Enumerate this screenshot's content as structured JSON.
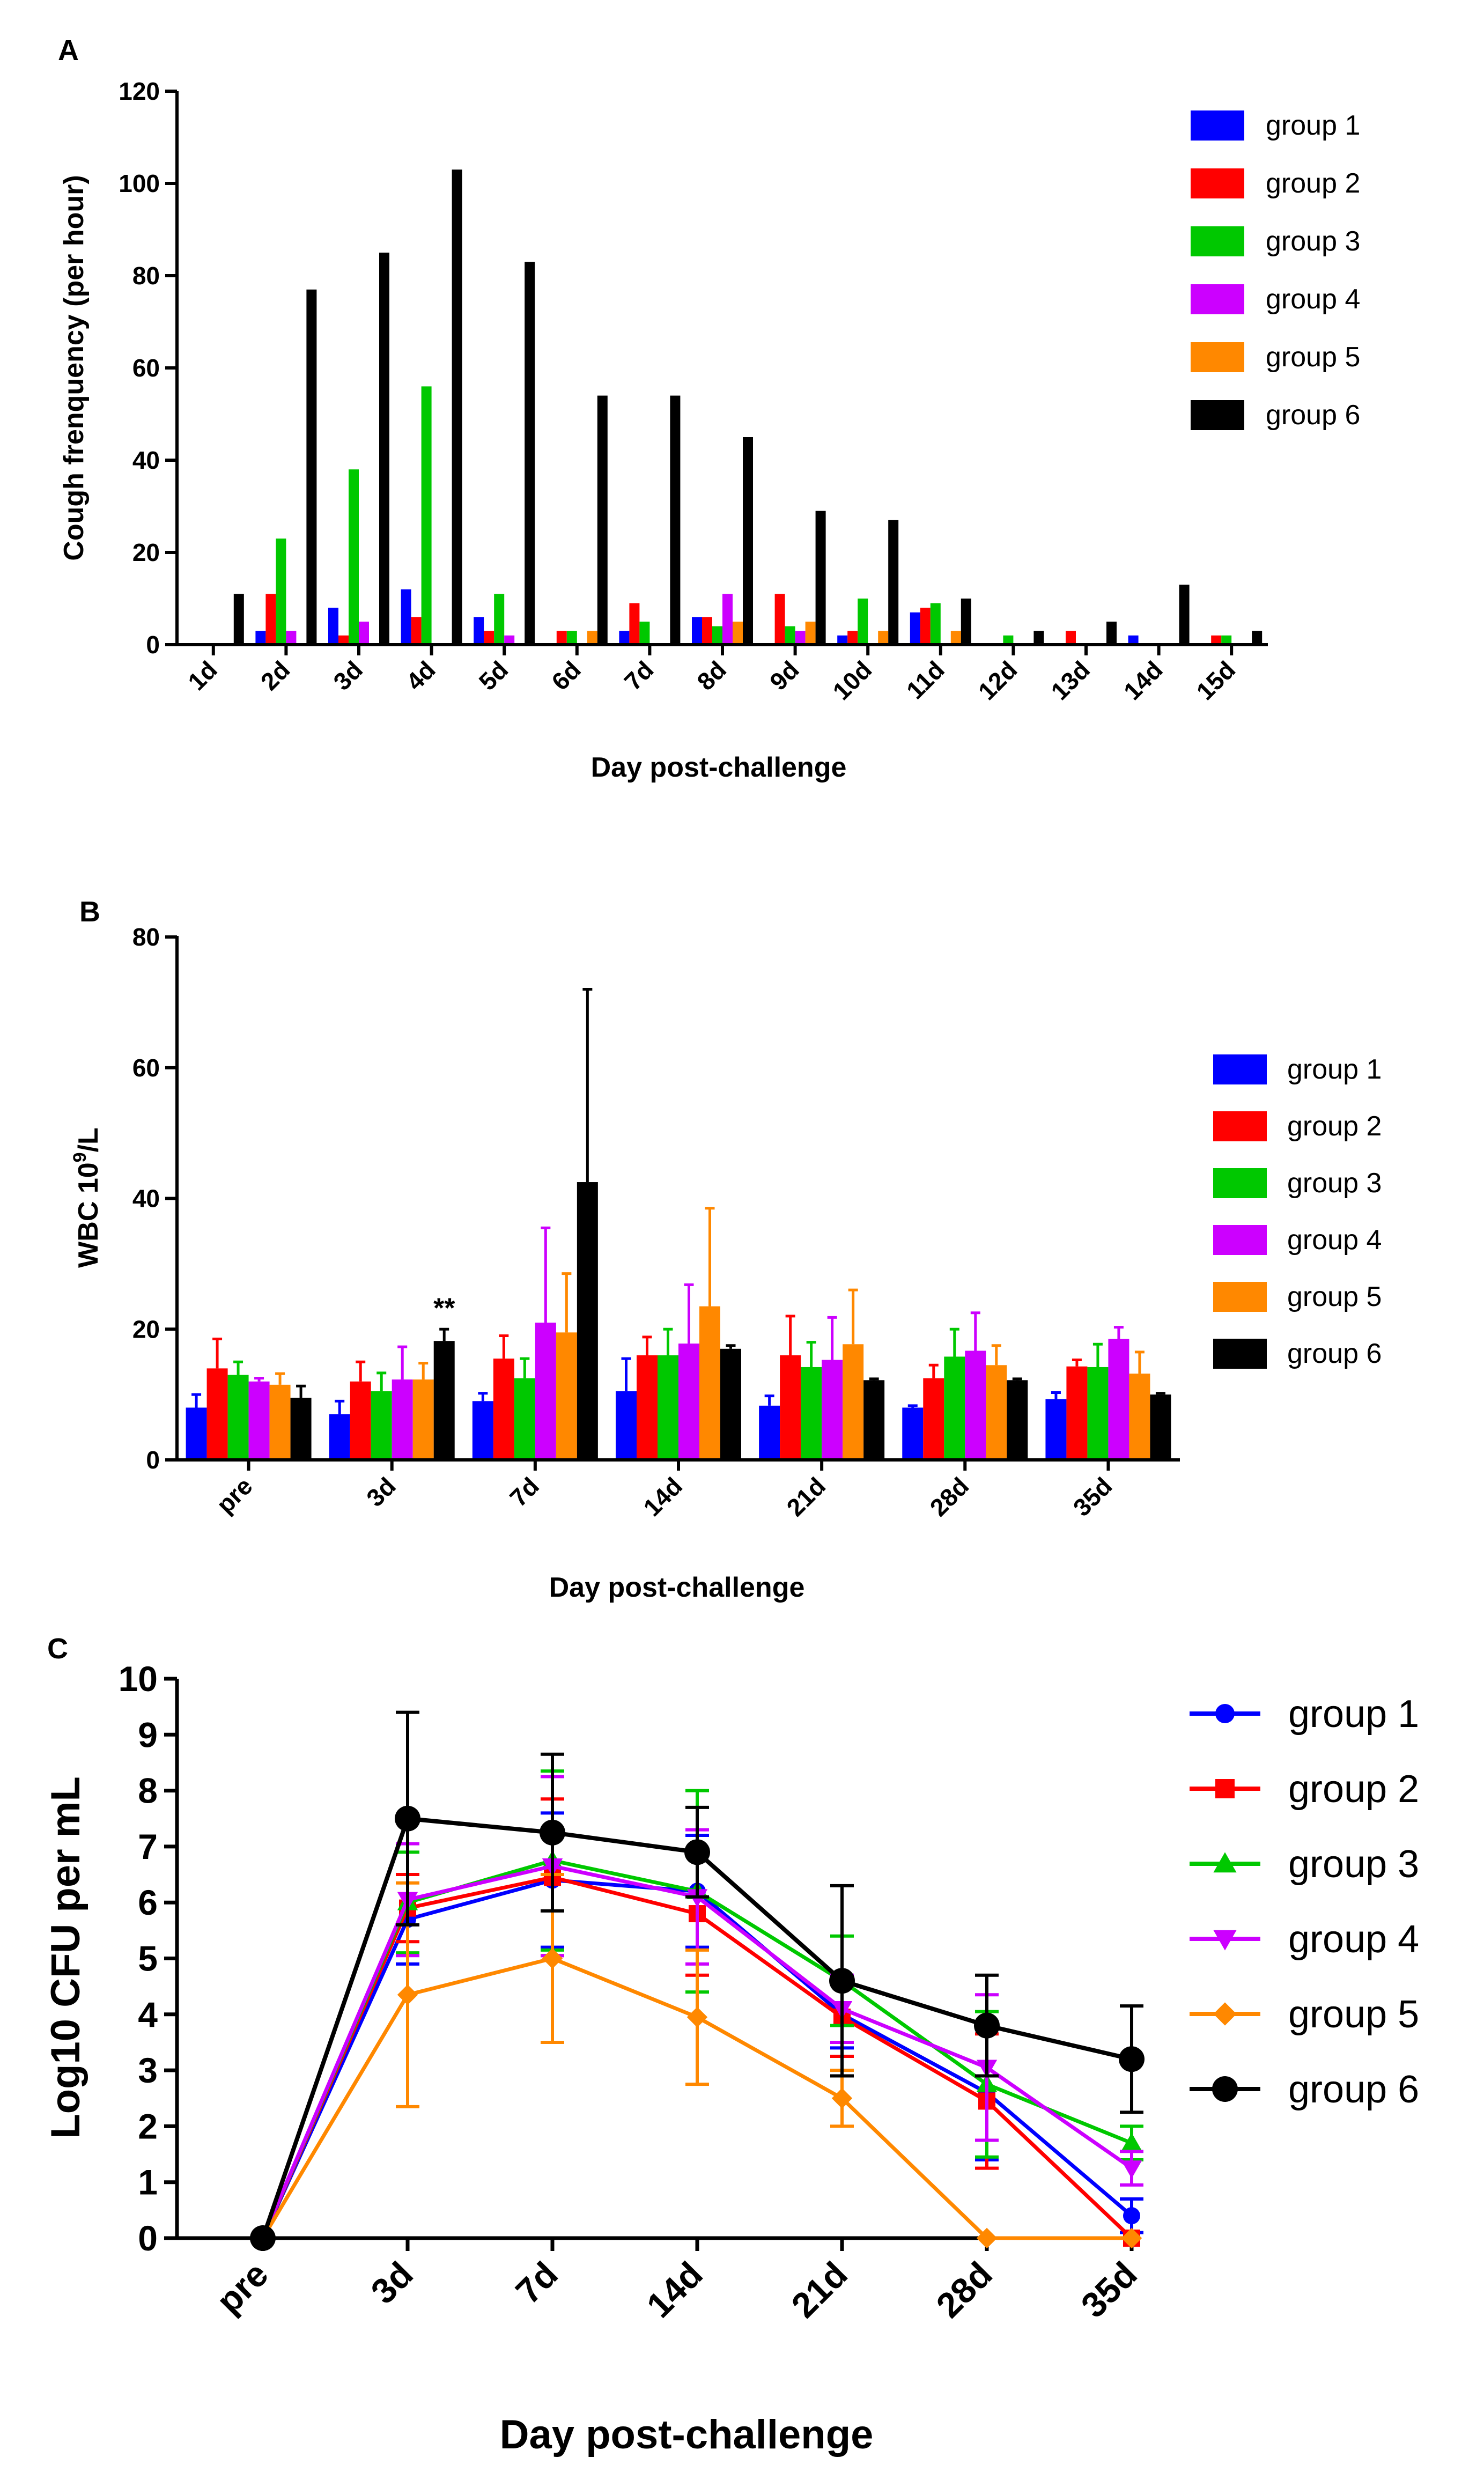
{
  "colors": {
    "group 1": "#0000ff",
    "group 2": "#ff0000",
    "group 3": "#00c800",
    "group 4": "#cc00ff",
    "group 5": "#ff8800",
    "group 6": "#000000"
  },
  "chart_data": [
    {
      "panel": "A",
      "type": "bar",
      "title": "",
      "xlabel": "Day post-challenge",
      "ylabel": "Cough frenquency (per hour)",
      "ylim": [
        0,
        120
      ],
      "yticks": [
        "0",
        "20",
        "40",
        "60",
        "80",
        "100",
        "120"
      ],
      "legend_position": "top-right",
      "categories": [
        "1d",
        "2d",
        "3d",
        "4d",
        "5d",
        "6d",
        "7d",
        "8d",
        "9d",
        "10d",
        "11d",
        "12d",
        "13d",
        "14d",
        "15d"
      ],
      "series": [
        {
          "name": "group 1",
          "values": [
            0,
            3,
            8,
            12,
            6,
            0,
            3,
            6,
            0,
            2,
            7,
            0,
            0,
            2,
            0
          ]
        },
        {
          "name": "group 2",
          "values": [
            0,
            11,
            2,
            6,
            3,
            3,
            9,
            6,
            11,
            3,
            8,
            0,
            3,
            0,
            2
          ]
        },
        {
          "name": "group 3",
          "values": [
            0,
            23,
            38,
            56,
            11,
            3,
            5,
            4,
            4,
            10,
            9,
            2,
            0,
            0,
            2
          ]
        },
        {
          "name": "group 4",
          "values": [
            0,
            3,
            5,
            0,
            2,
            0,
            0,
            11,
            3,
            0,
            0,
            0,
            0,
            0,
            0
          ]
        },
        {
          "name": "group 5",
          "values": [
            0,
            0,
            0,
            0,
            0,
            3,
            0,
            5,
            5,
            3,
            3,
            0,
            0,
            0,
            0
          ]
        },
        {
          "name": "group 6",
          "values": [
            11,
            77,
            85,
            103,
            83,
            54,
            54,
            45,
            29,
            27,
            10,
            3,
            5,
            13,
            3
          ]
        }
      ]
    },
    {
      "panel": "B",
      "type": "bar",
      "title": "",
      "xlabel": "Day post-challenge",
      "ylabel": "WBC 10",
      "ylabel_sup": "9",
      "ylabel_suffix": "/L",
      "ylim": [
        0,
        80
      ],
      "yticks": [
        "0",
        "20",
        "40",
        "60",
        "80"
      ],
      "legend_position": "right",
      "annotation": {
        "text": "**",
        "category": "3d",
        "series": "group 6"
      },
      "categories": [
        "pre",
        "3d",
        "7d",
        "14d",
        "21d",
        "28d",
        "35d"
      ],
      "series": [
        {
          "name": "group 1",
          "values": [
            8,
            7,
            9,
            10.5,
            8.3,
            8,
            9.3
          ],
          "errors": [
            2,
            2,
            1.2,
            5,
            1.5,
            0.3,
            1
          ]
        },
        {
          "name": "group 2",
          "values": [
            14,
            12,
            15.5,
            16,
            16,
            12.5,
            14.3
          ],
          "errors": [
            4.5,
            3,
            3.5,
            2.8,
            6,
            2,
            1
          ]
        },
        {
          "name": "group 3",
          "values": [
            13,
            10.5,
            12.5,
            16,
            14.2,
            15.8,
            14.2
          ],
          "errors": [
            2,
            2.8,
            3,
            4,
            3.8,
            4.2,
            3.5
          ]
        },
        {
          "name": "group 4",
          "values": [
            12,
            12.3,
            21,
            17.8,
            15.3,
            16.7,
            18.5
          ],
          "errors": [
            0.5,
            5,
            14.5,
            9,
            6.5,
            5.8,
            1.8
          ]
        },
        {
          "name": "group 5",
          "values": [
            11.5,
            12.3,
            19.5,
            23.5,
            17.7,
            14.5,
            13.2
          ],
          "errors": [
            1.7,
            2.5,
            9,
            15,
            8.3,
            3,
            3.3
          ]
        },
        {
          "name": "group 6",
          "values": [
            9.5,
            18.2,
            42.5,
            17,
            12.2,
            12.2,
            10
          ],
          "errors": [
            1.8,
            1.8,
            29.5,
            0.5,
            0.2,
            0.2,
            0.2
          ]
        }
      ]
    },
    {
      "panel": "C",
      "type": "line",
      "title": "",
      "xlabel": "Day post-challenge",
      "ylabel": "Log10 CFU per mL",
      "ylim": [
        0,
        10
      ],
      "yticks": [
        "0",
        "1",
        "2",
        "3",
        "4",
        "5",
        "6",
        "7",
        "8",
        "9",
        "10"
      ],
      "legend_position": "right",
      "categories": [
        "pre",
        "3d",
        "7d",
        "14d",
        "21d",
        "28d",
        "35d"
      ],
      "series": [
        {
          "name": "group 1",
          "marker": "circle",
          "values": [
            0,
            5.7,
            6.4,
            6.2,
            4.0,
            2.6,
            0.4
          ],
          "errors": [
            0,
            0.8,
            1.2,
            1.0,
            0.6,
            1.2,
            0.3
          ]
        },
        {
          "name": "group 2",
          "marker": "square",
          "values": [
            0,
            5.9,
            6.45,
            5.8,
            3.95,
            2.45,
            0
          ],
          "errors": [
            0,
            0.6,
            1.4,
            1.1,
            0.7,
            1.2,
            0
          ]
        },
        {
          "name": "group 3",
          "marker": "triangle-up",
          "values": [
            0,
            6.0,
            6.75,
            6.2,
            4.6,
            2.75,
            1.7
          ],
          "errors": [
            0,
            0.9,
            1.6,
            1.8,
            0.8,
            1.3,
            0.3
          ]
        },
        {
          "name": "group 4",
          "marker": "triangle-down",
          "values": [
            0,
            6.05,
            6.65,
            6.1,
            4.1,
            3.05,
            1.25
          ],
          "errors": [
            0,
            1.0,
            1.6,
            1.2,
            0.6,
            1.3,
            0.3
          ]
        },
        {
          "name": "group 5",
          "marker": "diamond",
          "values": [
            0,
            4.35,
            5.0,
            3.95,
            2.5,
            0,
            0
          ],
          "errors": [
            0,
            2.0,
            1.5,
            1.2,
            0.5,
            0,
            0
          ]
        },
        {
          "name": "group 6",
          "marker": "circle",
          "values": [
            0,
            7.5,
            7.25,
            6.9,
            4.6,
            3.8,
            3.2
          ],
          "errors": [
            0,
            1.9,
            1.4,
            0.8,
            1.7,
            0.9,
            0.95
          ]
        }
      ]
    }
  ]
}
